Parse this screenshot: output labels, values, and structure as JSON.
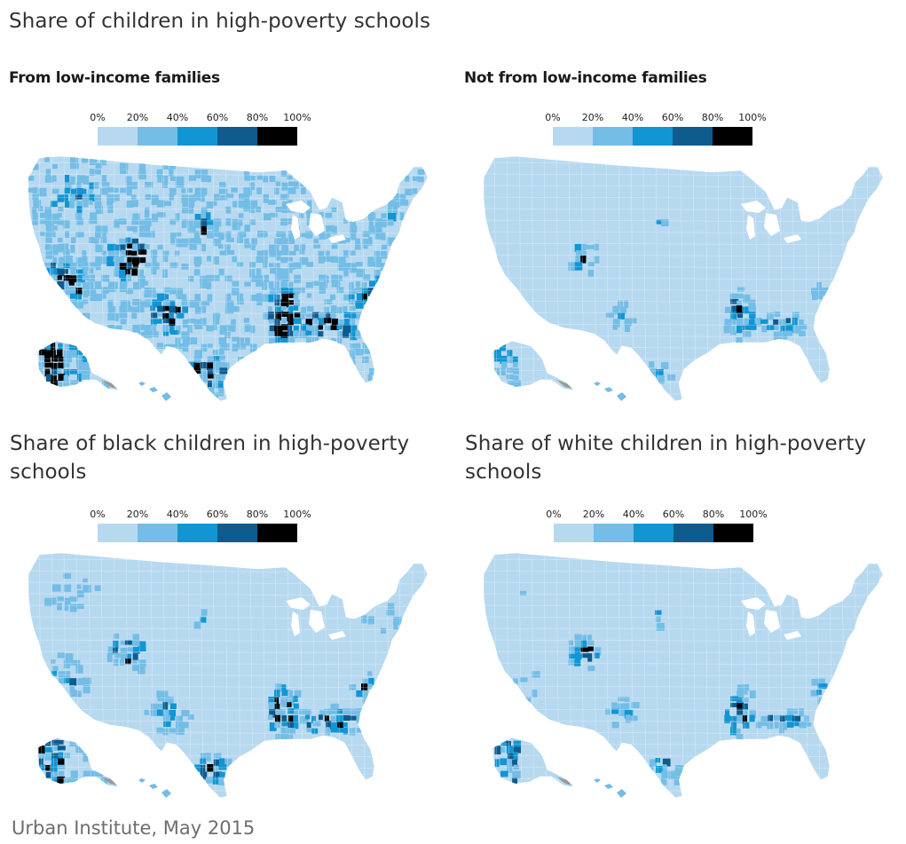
{
  "title": "Share of children in high-poverty schools",
  "legend": {
    "ticks": [
      "0%",
      "20%",
      "40%",
      "60%",
      "80%",
      "100%"
    ],
    "colors": [
      "#b7d9f0",
      "#73bde6",
      "#1195d3",
      "#0e5b8e",
      "#000000"
    ]
  },
  "panels": [
    {
      "id": "low",
      "heading": "From low-income families",
      "intensity": {
        "base": 0.95,
        "west": 1.1,
        "southwest": 1.4,
        "south": 1.25,
        "east": 0.9
      }
    },
    {
      "id": "notlow",
      "heading": "Not from low-income families",
      "intensity": {
        "base": 0.25,
        "west": 0.35,
        "southwest": 0.9,
        "south": 1.1,
        "east": 0.35
      }
    },
    {
      "id": "black",
      "heading": "Share of black children in high-poverty schools",
      "intensity": {
        "base": 0.55,
        "west": 0.8,
        "southwest": 1.1,
        "south": 1.25,
        "east": 0.8
      }
    },
    {
      "id": "white",
      "heading": "Share of white children in high-poverty schools",
      "intensity": {
        "base": 0.3,
        "west": 0.55,
        "southwest": 1.05,
        "south": 1.05,
        "east": 0.4
      }
    }
  ],
  "source": "Urban Institute, May 2015"
}
